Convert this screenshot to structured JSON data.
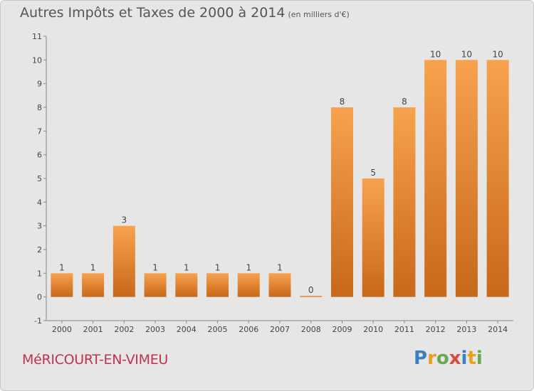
{
  "header": {
    "title": "Autres Impôts et Taxes de 2000 à 2014",
    "unit": "(en milliers d'€)"
  },
  "footer": {
    "commune": "MéRICOURT-EN-VIMEU",
    "logo_letters": [
      "P",
      "r",
      "o",
      "x",
      "i",
      "t",
      "i"
    ],
    "logo_colors": [
      "#3a7fc1",
      "#e8a020",
      "#6aa84f",
      "#d94b3c",
      "#3a7fc1",
      "#e8a020",
      "#6aa84f"
    ]
  },
  "chart_data": {
    "type": "bar",
    "title": "Autres Impôts et Taxes de 2000 à 2014",
    "xlabel": "",
    "ylabel": "",
    "categories": [
      "2000",
      "2001",
      "2002",
      "2003",
      "2004",
      "2005",
      "2006",
      "2007",
      "2008",
      "2009",
      "2010",
      "2011",
      "2012",
      "2013",
      "2014"
    ],
    "values": [
      1,
      1,
      3,
      1,
      1,
      1,
      1,
      1,
      0,
      8,
      5,
      8,
      10,
      10,
      10
    ],
    "value_labels": [
      "1",
      "1",
      "3",
      "1",
      "1",
      "1",
      "1",
      "1",
      "0",
      "8",
      "5",
      "8",
      "10",
      "10",
      "10"
    ],
    "yticks": [
      "-1",
      "0",
      "1",
      "2",
      "3",
      "4",
      "5",
      "6",
      "7",
      "8",
      "9",
      "10",
      "11"
    ],
    "ylim": [
      -1,
      11
    ],
    "grid": false,
    "bar_color_light": "#f7a24e",
    "bar_color_dark": "#c8681a"
  }
}
